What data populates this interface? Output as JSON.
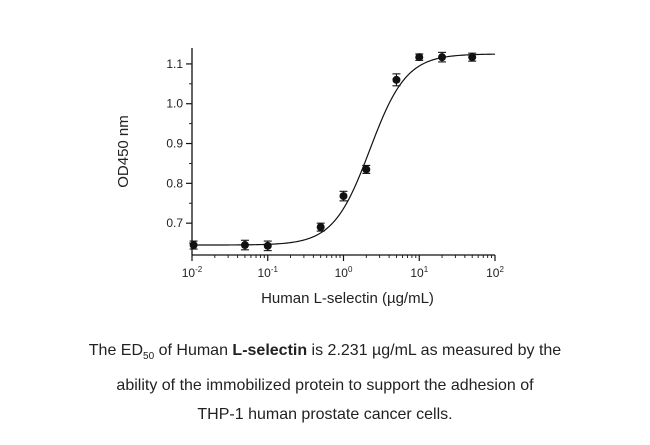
{
  "chart_data": {
    "type": "scatter",
    "xscale": "log",
    "xlim": [
      0.01,
      100
    ],
    "ylim": [
      0.62,
      1.14
    ],
    "xlabel": "Human L-selectin (µg/mL)",
    "ylabel": "OD450 nm",
    "xticks": [
      {
        "value": 0.01,
        "base": "10",
        "exp": "-2"
      },
      {
        "value": 0.1,
        "base": "10",
        "exp": "-1"
      },
      {
        "value": 1,
        "base": "10",
        "exp": "0"
      },
      {
        "value": 10,
        "base": "10",
        "exp": "1"
      },
      {
        "value": 100,
        "base": "10",
        "exp": "2"
      }
    ],
    "yticks": [
      {
        "value": 0.7,
        "label": "0.7"
      },
      {
        "value": 0.8,
        "label": "0.8"
      },
      {
        "value": 0.9,
        "label": "0.9"
      },
      {
        "value": 1.0,
        "label": "1.0"
      },
      {
        "value": 1.1,
        "label": "1.1"
      }
    ],
    "grid": false,
    "points": [
      {
        "x": 0.0105,
        "y": 0.645,
        "err": 0.01
      },
      {
        "x": 0.05,
        "y": 0.645,
        "err": 0.012
      },
      {
        "x": 0.1,
        "y": 0.643,
        "err": 0.012
      },
      {
        "x": 0.5,
        "y": 0.69,
        "err": 0.01
      },
      {
        "x": 1.0,
        "y": 0.768,
        "err": 0.012
      },
      {
        "x": 2.0,
        "y": 0.835,
        "err": 0.01
      },
      {
        "x": 5.0,
        "y": 1.06,
        "err": 0.015
      },
      {
        "x": 10.0,
        "y": 1.117,
        "err": 0.008
      },
      {
        "x": 20.0,
        "y": 1.117,
        "err": 0.012
      },
      {
        "x": 50.0,
        "y": 1.117,
        "err": 0.01
      }
    ],
    "fit": {
      "bottom": 0.645,
      "top": 1.125,
      "ed50": 2.231,
      "hill": 1.8
    }
  },
  "caption": {
    "t1": "The ED",
    "sub": "50",
    "t2": " of Human ",
    "bold": "L-selectin",
    "t3": " is 2.231 µg/mL as measured by the",
    "line2": "ability of the immobilized protein to support the adhesion of",
    "line3": "THP-1 human prostate cancer cells."
  }
}
